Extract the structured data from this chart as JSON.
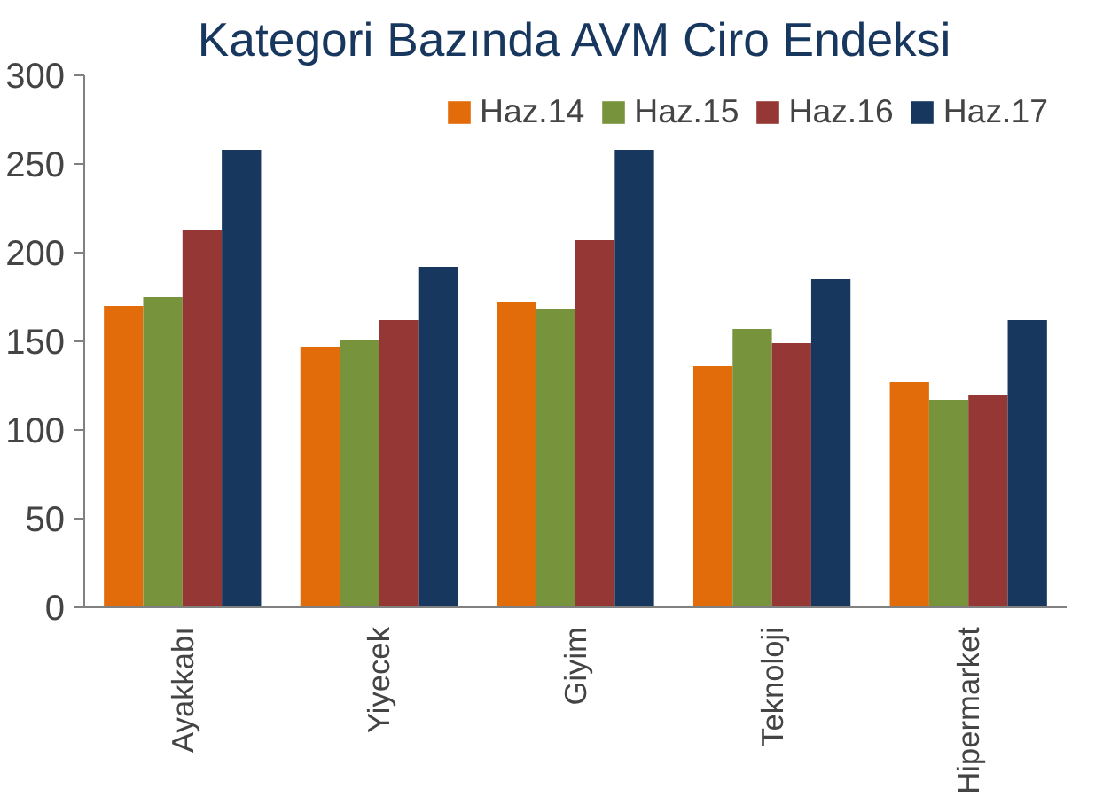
{
  "chart_data": {
    "type": "bar",
    "title": "Kategori Bazında AVM Ciro Endeksi",
    "categories": [
      "Ayakkabı",
      "Yiyecek",
      "Giyim",
      "Teknoloji",
      "Hipermarket"
    ],
    "series": [
      {
        "name": "Haz.14",
        "color": "#e36c0a",
        "values": [
          170,
          147,
          172,
          136,
          127
        ]
      },
      {
        "name": "Haz.15",
        "color": "#77933c",
        "values": [
          175,
          151,
          168,
          157,
          117
        ]
      },
      {
        "name": "Haz.16",
        "color": "#953735",
        "values": [
          213,
          162,
          207,
          149,
          120
        ]
      },
      {
        "name": "Haz.17",
        "color": "#17375e",
        "values": [
          258,
          192,
          258,
          185,
          162
        ]
      }
    ],
    "ylim": [
      0,
      300
    ],
    "yticks": [
      0,
      50,
      100,
      150,
      200,
      250,
      300
    ],
    "grid": false,
    "legend": "top right"
  }
}
